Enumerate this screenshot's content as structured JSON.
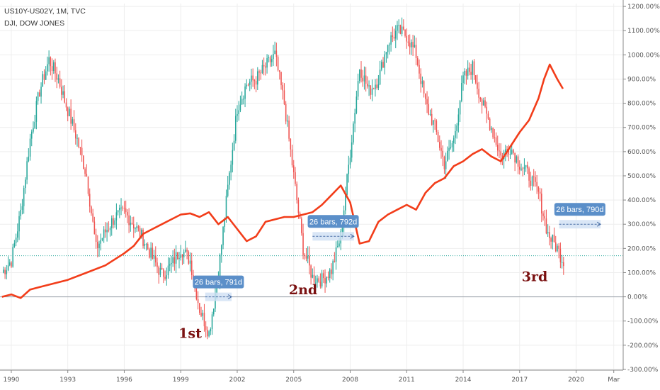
{
  "legend": {
    "series1": "US10Y-US02Y, 1M, TVC",
    "series2": "DJI, DOW JONES"
  },
  "colors": {
    "up": "#26a69a",
    "down": "#ef5350",
    "dji_line": "#f23d1a",
    "grid": "#eeeeee",
    "zero_line": "#9aa0aa",
    "last_value_line": "#26a69a",
    "annotation_box": "#5b8fc9",
    "annotation_range": "#cfe0f4",
    "big_label": "#7a1010"
  },
  "chart_data": {
    "type": "candlestick",
    "right_axis": {
      "ticks": [
        "1200.00%",
        "1100.00%",
        "1000.00%",
        "900.00%",
        "800.00%",
        "700.00%",
        "600.00%",
        "500.00%",
        "400.00%",
        "300.00%",
        "200.00%",
        "100.00%",
        "0.00%",
        "-100.00%",
        "-200.00%",
        "-300.00%"
      ],
      "tick_values": [
        1200,
        1100,
        1000,
        900,
        800,
        700,
        600,
        500,
        400,
        300,
        200,
        100,
        0,
        -100,
        -200,
        -300
      ],
      "ylim": [
        -303,
        1212
      ]
    },
    "x_axis": {
      "ticks": [
        "1990",
        "1993",
        "1996",
        "1999",
        "2002",
        "2005",
        "2008",
        "2011",
        "2014",
        "2017",
        "2020",
        "Mar"
      ],
      "tick_years": [
        1990,
        1993,
        1996,
        1999,
        2002,
        2005,
        2008,
        2011,
        2014,
        2017,
        2020,
        2022
      ],
      "xlim": [
        1989.4,
        2022.5
      ]
    },
    "series": [
      {
        "name": "US10Y-US02Y, 1M, TVC",
        "kind": "candles",
        "x": [
          1989.5,
          1990.0,
          1990.5,
          1991.0,
          1991.5,
          1992.0,
          1992.5,
          1992.8,
          1993.5,
          1994.0,
          1994.5,
          1995.0,
          1995.5,
          1996.0,
          1996.5,
          1997.0,
          1997.5,
          1998.0,
          1998.5,
          1999.0,
          1999.5,
          2000.0,
          2000.5,
          2001.0,
          2001.5,
          2002.0,
          2002.5,
          2003.0,
          2003.5,
          2004.0,
          2004.5,
          2005.0,
          2005.5,
          2006.0,
          2006.5,
          2007.0,
          2007.5,
          2008.0,
          2008.5,
          2009.0,
          2009.5,
          2010.0,
          2010.5,
          2011.0,
          2011.5,
          2012.0,
          2012.5,
          2013.0,
          2013.5,
          2014.0,
          2014.5,
          2015.0,
          2015.5,
          2016.0,
          2016.5,
          2017.0,
          2017.5,
          2018.0,
          2018.5,
          2019.0,
          2019.3
        ],
        "values": [
          100,
          150,
          350,
          650,
          850,
          980,
          900,
          820,
          650,
          500,
          200,
          270,
          330,
          350,
          300,
          240,
          160,
          90,
          130,
          200,
          150,
          -50,
          -150,
          100,
          450,
          780,
          880,
          900,
          950,
          1000,
          800,
          500,
          200,
          80,
          70,
          110,
          250,
          600,
          950,
          850,
          900,
          1050,
          1100,
          1080,
          1000,
          800,
          700,
          550,
          650,
          900,
          950,
          800,
          700,
          580,
          620,
          550,
          500,
          430,
          260,
          200,
          150
        ]
      },
      {
        "name": "DJI, DOW JONES",
        "kind": "line",
        "x": [
          1989.5,
          1990.0,
          1990.5,
          1991.0,
          1991.5,
          1992.0,
          1993.0,
          1994.0,
          1995.0,
          1996.0,
          1996.5,
          1997.0,
          1997.5,
          1998.0,
          1998.5,
          1999.0,
          1999.5,
          2000.0,
          2000.5,
          2001.0,
          2001.5,
          2002.0,
          2002.5,
          2003.0,
          2003.5,
          2004.0,
          2004.5,
          2005.0,
          2005.5,
          2006.0,
          2006.5,
          2007.0,
          2007.5,
          2008.0,
          2008.5,
          2009.0,
          2009.5,
          2010.0,
          2010.5,
          2011.0,
          2011.5,
          2012.0,
          2012.5,
          2013.0,
          2013.5,
          2014.0,
          2014.5,
          2015.0,
          2015.5,
          2016.0,
          2016.5,
          2017.0,
          2017.5,
          2018.0,
          2018.3,
          2018.6,
          2019.0,
          2019.3
        ],
        "values": [
          0,
          10,
          -5,
          30,
          40,
          50,
          70,
          100,
          130,
          180,
          210,
          260,
          280,
          300,
          320,
          340,
          345,
          330,
          350,
          300,
          330,
          280,
          230,
          250,
          310,
          320,
          330,
          330,
          340,
          350,
          380,
          420,
          460,
          390,
          220,
          230,
          310,
          340,
          360,
          380,
          360,
          430,
          470,
          490,
          540,
          560,
          590,
          610,
          580,
          560,
          620,
          680,
          730,
          820,
          900,
          960,
          900,
          860
        ]
      }
    ],
    "annotations": [
      {
        "type": "range",
        "label": "26 bars, 791d",
        "x_start": 2000.3,
        "x_end": 2001.7,
        "y": 0
      },
      {
        "type": "range",
        "label": "26 bars, 792d",
        "x_start": 2006.0,
        "x_end": 2008.2,
        "y": 250
      },
      {
        "type": "range",
        "label": "26 bars, 790d",
        "x_start": 2019.1,
        "x_end": 2021.3,
        "y": 300
      },
      {
        "type": "text",
        "label": "1st",
        "x": 1999.5,
        "y": -170
      },
      {
        "type": "text",
        "label": "2nd",
        "x": 2005.5,
        "y": 10
      },
      {
        "type": "text",
        "label": "3rd",
        "x": 2017.8,
        "y": 65
      }
    ],
    "last_value": 170,
    "grid": true
  }
}
